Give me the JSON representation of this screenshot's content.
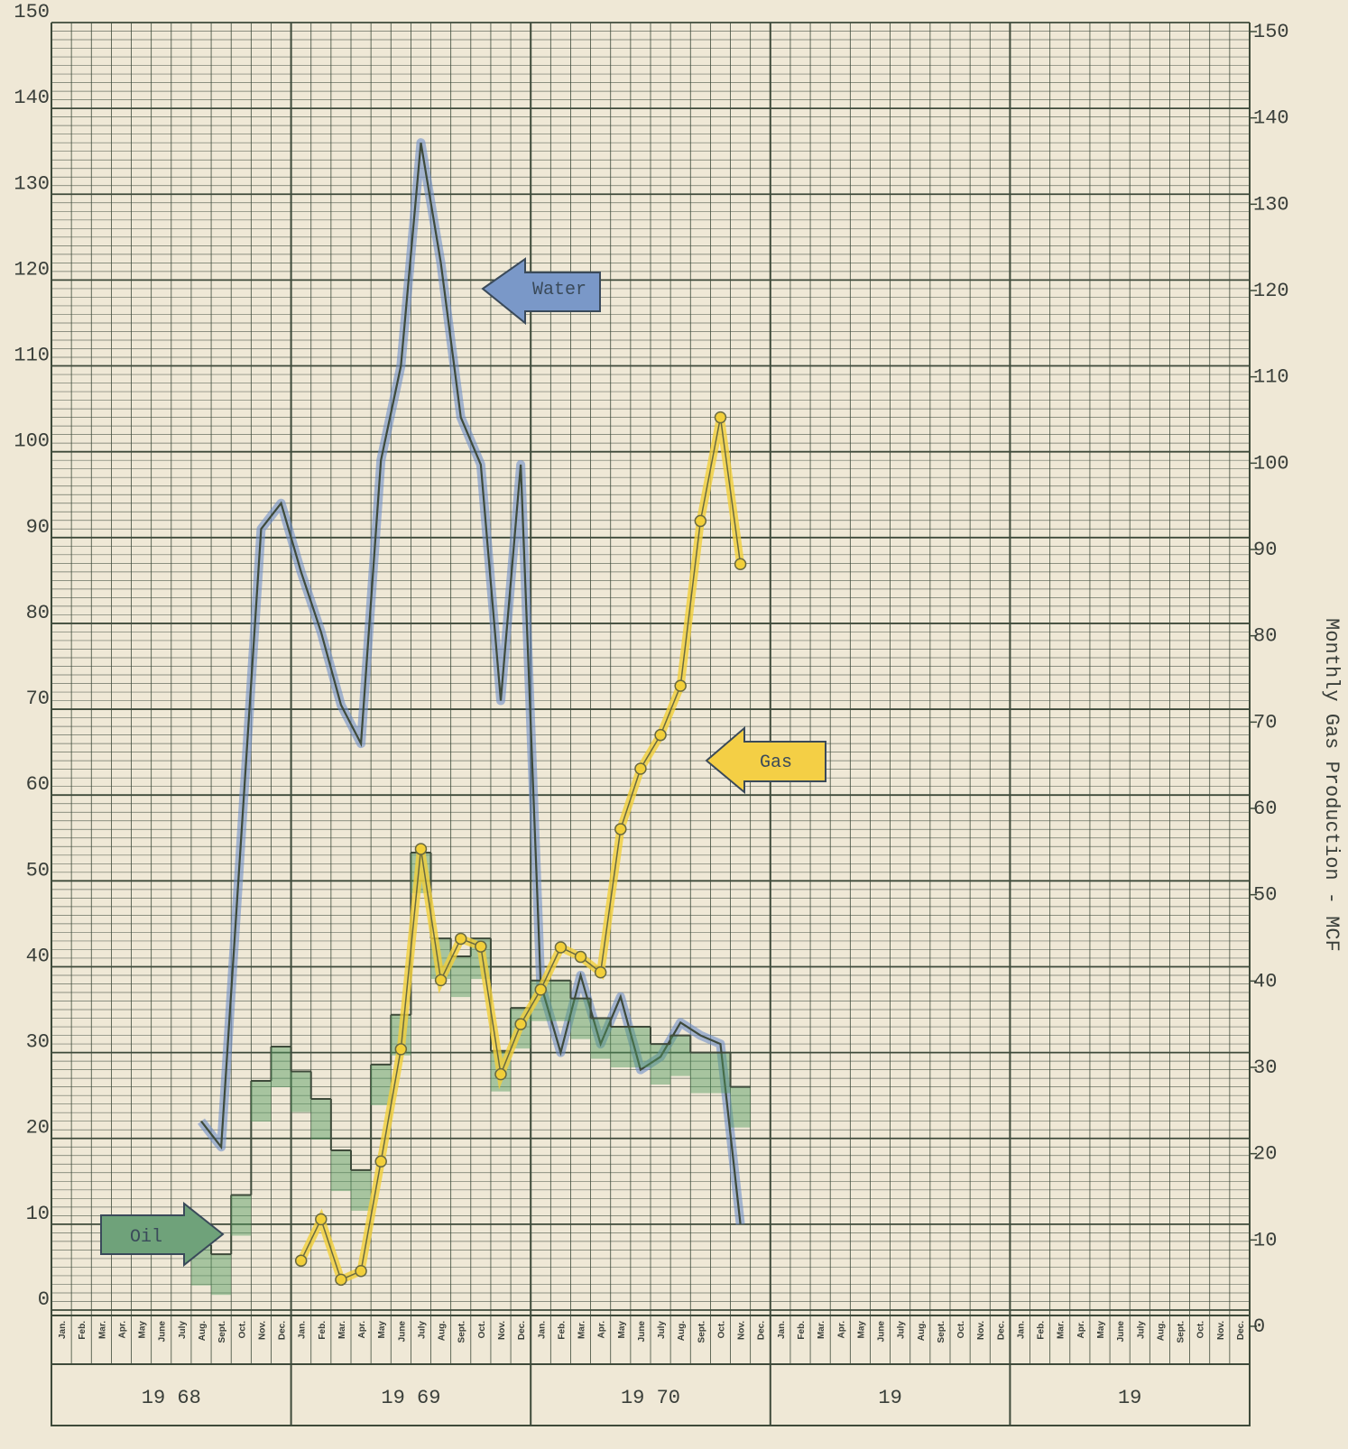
{
  "chart_data": {
    "type": "line",
    "y_axis_label": "Monthly Gas Production - MCF",
    "categories": [
      "Jan.",
      "Feb.",
      "Mar.",
      "Apr.",
      "May",
      "June",
      "July",
      "Aug.",
      "Sept.",
      "Oct.",
      "Nov.",
      "Dec.",
      "Jan.",
      "Feb.",
      "Mar.",
      "Apr.",
      "May",
      "June",
      "July",
      "Aug.",
      "Sept.",
      "Oct.",
      "Nov.",
      "Dec.",
      "Jan.",
      "Feb.",
      "Mar.",
      "Apr.",
      "May",
      "June",
      "July",
      "Aug.",
      "Sept.",
      "Oct.",
      "Nov.",
      "Dec.",
      "Jan.",
      "Feb.",
      "Mar.",
      "Apr.",
      "May",
      "June",
      "July",
      "Aug.",
      "Sept.",
      "Oct.",
      "Nov.",
      "Dec.",
      "Jan.",
      "Feb.",
      "Mar.",
      "Apr.",
      "May",
      "June",
      "July",
      "Aug.",
      "Sept.",
      "Oct.",
      "Nov.",
      "Dec."
    ],
    "year_labels": [
      "19 68",
      "19 69",
      "19 70",
      "19",
      "19"
    ],
    "annotations": [
      "Water",
      "Gas",
      "Oil"
    ],
    "series": [
      {
        "name": "Water",
        "color": "#6f8fc8",
        "style": "line",
        "values": [
          null,
          null,
          null,
          null,
          null,
          null,
          null,
          22,
          19,
          55,
          91,
          94,
          86,
          79,
          70.5,
          66,
          99,
          110,
          136,
          122,
          104,
          98.5,
          71,
          98.5,
          38,
          30,
          39,
          31,
          36.5,
          28,
          29.5,
          33.5,
          32,
          31,
          10,
          null,
          null,
          null,
          null,
          null,
          null,
          null,
          null,
          null,
          null,
          null,
          null,
          null,
          null,
          null,
          null,
          null,
          null,
          null,
          null,
          null,
          null,
          null,
          null,
          null
        ]
      },
      {
        "name": "Oil",
        "color": "#4f9a5e",
        "style": "step",
        "values": [
          null,
          null,
          null,
          null,
          null,
          null,
          null,
          7.6,
          6.5,
          13.4,
          26.7,
          30.7,
          27.8,
          24.6,
          18.6,
          16.3,
          28.6,
          34.4,
          53.3,
          43.3,
          41.2,
          43.3,
          30.2,
          35.2,
          38.4,
          38.4,
          36.3,
          34,
          33,
          33,
          31,
          32,
          30,
          30,
          26,
          null,
          null,
          null,
          null,
          null,
          null,
          null,
          null,
          null,
          null,
          null,
          null,
          null,
          null,
          null,
          null,
          null,
          null,
          null,
          null,
          null,
          null,
          null,
          null,
          null
        ]
      },
      {
        "name": "Gas",
        "color": "#f2cf3a",
        "style": "points",
        "axis": "y2",
        "values": [
          null,
          null,
          null,
          null,
          null,
          null,
          null,
          null,
          null,
          null,
          null,
          null,
          7.6,
          12.4,
          5.4,
          6.4,
          19.1,
          32.1,
          55.3,
          40.1,
          44.9,
          44,
          29.2,
          35,
          39,
          43.9,
          42.8,
          41,
          57.6,
          64.6,
          68.5,
          74.2,
          93.3,
          105.3,
          88.3,
          null,
          null,
          null,
          null,
          null,
          null,
          null,
          null,
          null,
          null,
          null,
          null,
          null,
          null,
          null,
          null,
          null,
          null,
          null,
          null,
          null,
          null,
          null,
          null,
          null
        ]
      }
    ],
    "ylim": [
      0,
      150
    ],
    "yticks": [
      0,
      10,
      20,
      30,
      40,
      50,
      60,
      70,
      80,
      90,
      100,
      110,
      120,
      130,
      140,
      150
    ],
    "y2lim": [
      0,
      150
    ],
    "y2ticks": [
      0,
      10,
      20,
      30,
      40,
      50,
      60,
      70,
      80,
      90,
      100,
      110,
      120,
      130,
      140,
      150
    ],
    "grid": true
  }
}
